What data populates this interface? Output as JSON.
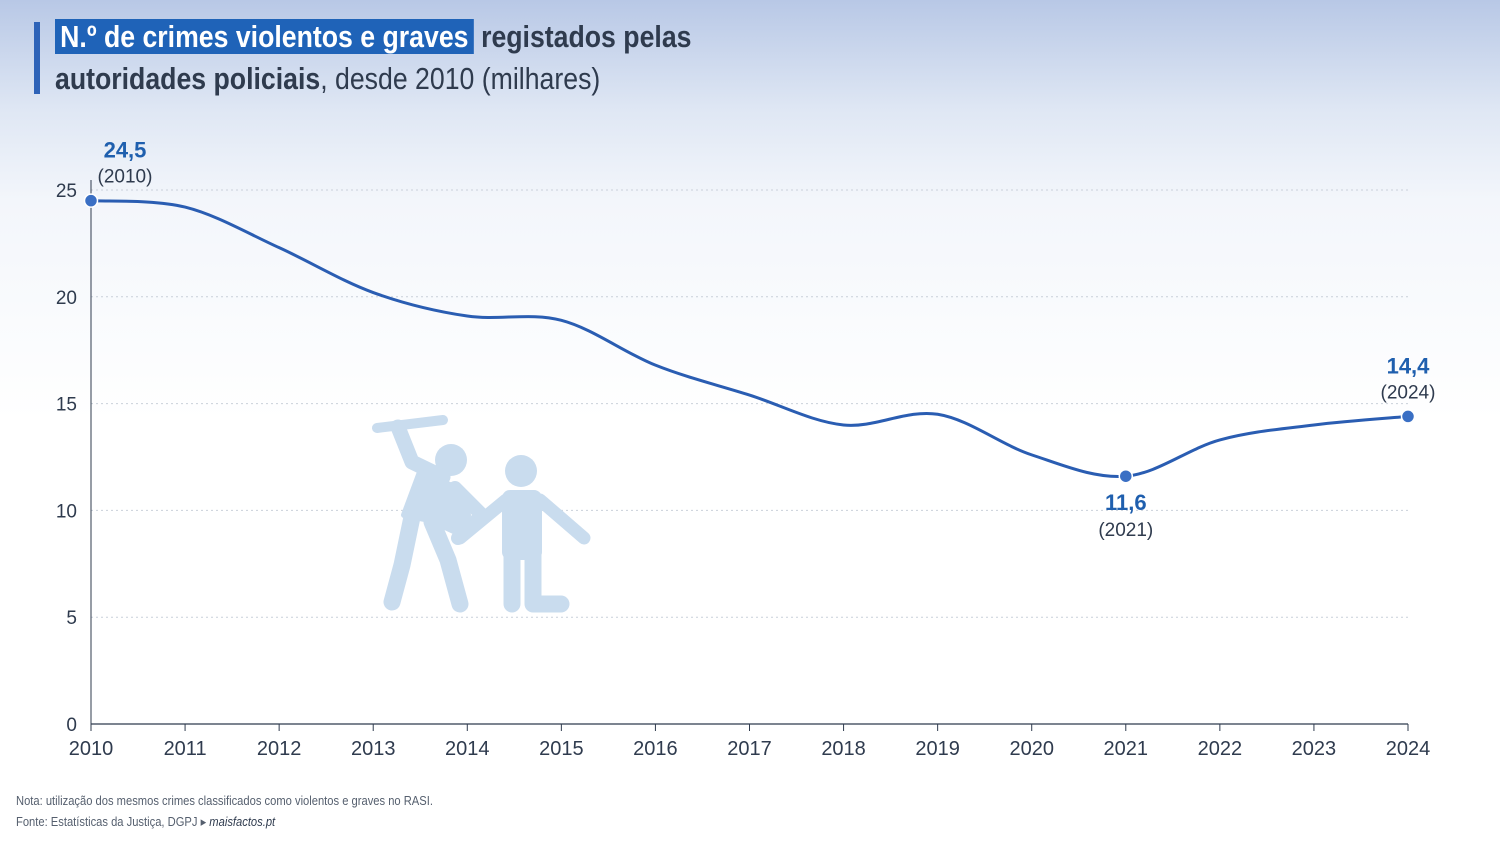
{
  "header": {
    "title_highlight": "N.º de crimes violentos e graves",
    "title_bold_1": " registados pelas",
    "title_bold_2": "autoridades policiais",
    "title_rest": ", desde 2010 (milhares)"
  },
  "colors": {
    "accent": "#2e63b8",
    "line": "#2a5db2",
    "label": "#1f5fae",
    "axis": "#2f3b4e",
    "icon": "#c9dcee"
  },
  "illustration": {
    "icon": "violence-pictogram-icon"
  },
  "chart_data": {
    "type": "line",
    "x": [
      "2010",
      "2011",
      "2012",
      "2013",
      "2014",
      "2015",
      "2016",
      "2017",
      "2018",
      "2019",
      "2020",
      "2021",
      "2022",
      "2023",
      "2024"
    ],
    "series": [
      {
        "values": [
          24.5,
          24.2,
          22.3,
          20.2,
          19.1,
          18.9,
          16.8,
          15.4,
          14.0,
          14.5,
          12.6,
          11.6,
          13.3,
          14.0,
          14.4
        ]
      }
    ],
    "ylim": [
      0,
      25
    ],
    "yticks": [
      "0",
      "5",
      "10",
      "15",
      "20",
      "25"
    ],
    "grid": true,
    "annotations": [
      {
        "index": 0,
        "value_label": "24,5",
        "year_label": "(2010)",
        "position": "above"
      },
      {
        "index": 11,
        "value_label": "11,6",
        "year_label": "(2021)",
        "position": "below"
      },
      {
        "index": 14,
        "value_label": "14,4",
        "year_label": "(2024)",
        "position": "above"
      }
    ]
  },
  "footer": {
    "note": "Nota: utilização dos mesmos crimes classificados como violentos e graves no RASI.",
    "source": "Fonte: Estatísticas da Justiça, DGPJ",
    "brand": "maisfactos.pt"
  }
}
